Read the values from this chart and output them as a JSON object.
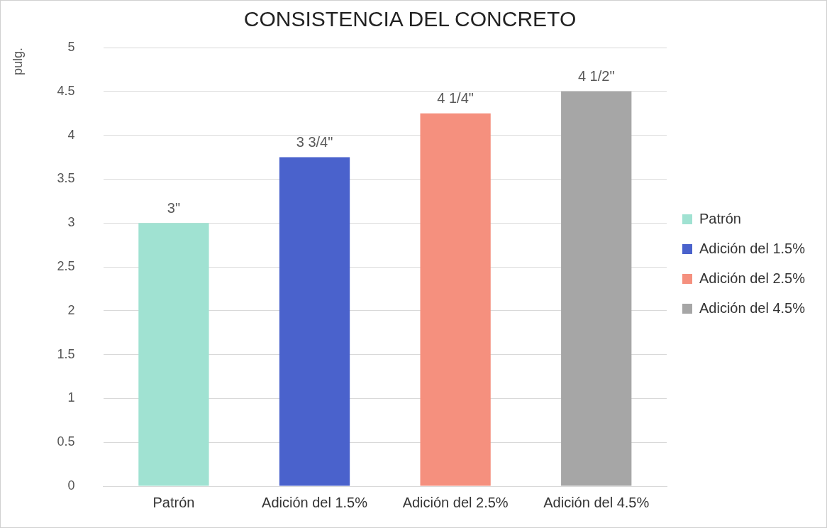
{
  "chart_data": {
    "type": "bar",
    "title": "CONSISTENCIA DEL CONCRETO",
    "ylabel": "pulg.",
    "categories": [
      "Patrón",
      "Adición del 1.5%",
      "Adición del 2.5%",
      "Adición del 4.5%"
    ],
    "series": [
      {
        "name": "Patrón",
        "color": "#a0e2d2",
        "values": [
          3,
          null,
          null,
          null
        ],
        "value_labels": [
          "3\"",
          null,
          null,
          null
        ]
      },
      {
        "name": "Adición del 1.5%",
        "color": "#4a62cc",
        "values": [
          null,
          3.75,
          null,
          null
        ],
        "value_labels": [
          null,
          "3 3/4\"",
          null,
          null
        ]
      },
      {
        "name": "Adición del 2.5%",
        "color": "#f5907e",
        "values": [
          null,
          null,
          4.25,
          null
        ],
        "value_labels": [
          null,
          null,
          "4 1/4\"",
          null
        ]
      },
      {
        "name": "Adición del 4.5%",
        "color": "#a6a6a6",
        "values": [
          null,
          null,
          null,
          4.5
        ],
        "value_labels": [
          null,
          null,
          null,
          "4 1/2\""
        ]
      }
    ],
    "ylim": [
      0,
      5
    ],
    "yticks": [
      0,
      0.5,
      1,
      1.5,
      2,
      2.5,
      3,
      3.5,
      4,
      4.5,
      5
    ],
    "grid": "y",
    "legend": "right"
  }
}
